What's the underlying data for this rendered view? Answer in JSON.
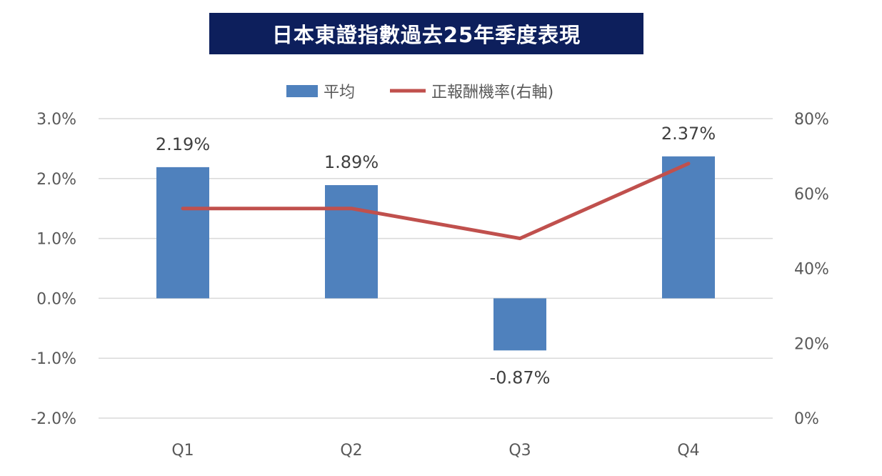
{
  "chart_data": {
    "type": "bar",
    "title": "日本東證指數過去25年季度表現",
    "categories": [
      "Q1",
      "Q2",
      "Q3",
      "Q4"
    ],
    "series": [
      {
        "name": "平均",
        "type": "bar",
        "axis": "left",
        "values": [
          2.19,
          1.89,
          -0.87,
          2.37
        ],
        "labels": [
          "2.19%",
          "1.89%",
          "-0.87%",
          "2.37%"
        ],
        "color": "#4f81bd"
      },
      {
        "name": "正報酬機率(右軸)",
        "type": "line",
        "axis": "right",
        "values": [
          56,
          56,
          48,
          68
        ],
        "color": "#c0504d"
      }
    ],
    "left_axis": {
      "min": -2,
      "max": 3,
      "step": 1,
      "tick_labels": [
        "3.0%",
        "2.0%",
        "1.0%",
        "0.0%",
        "-1.0%",
        "-2.0%"
      ]
    },
    "right_axis": {
      "min": 0,
      "max": 80,
      "step": 20,
      "tick_labels": [
        "80%",
        "60%",
        "40%",
        "20%",
        "0%"
      ]
    },
    "grid": true,
    "legend_position": "top"
  }
}
